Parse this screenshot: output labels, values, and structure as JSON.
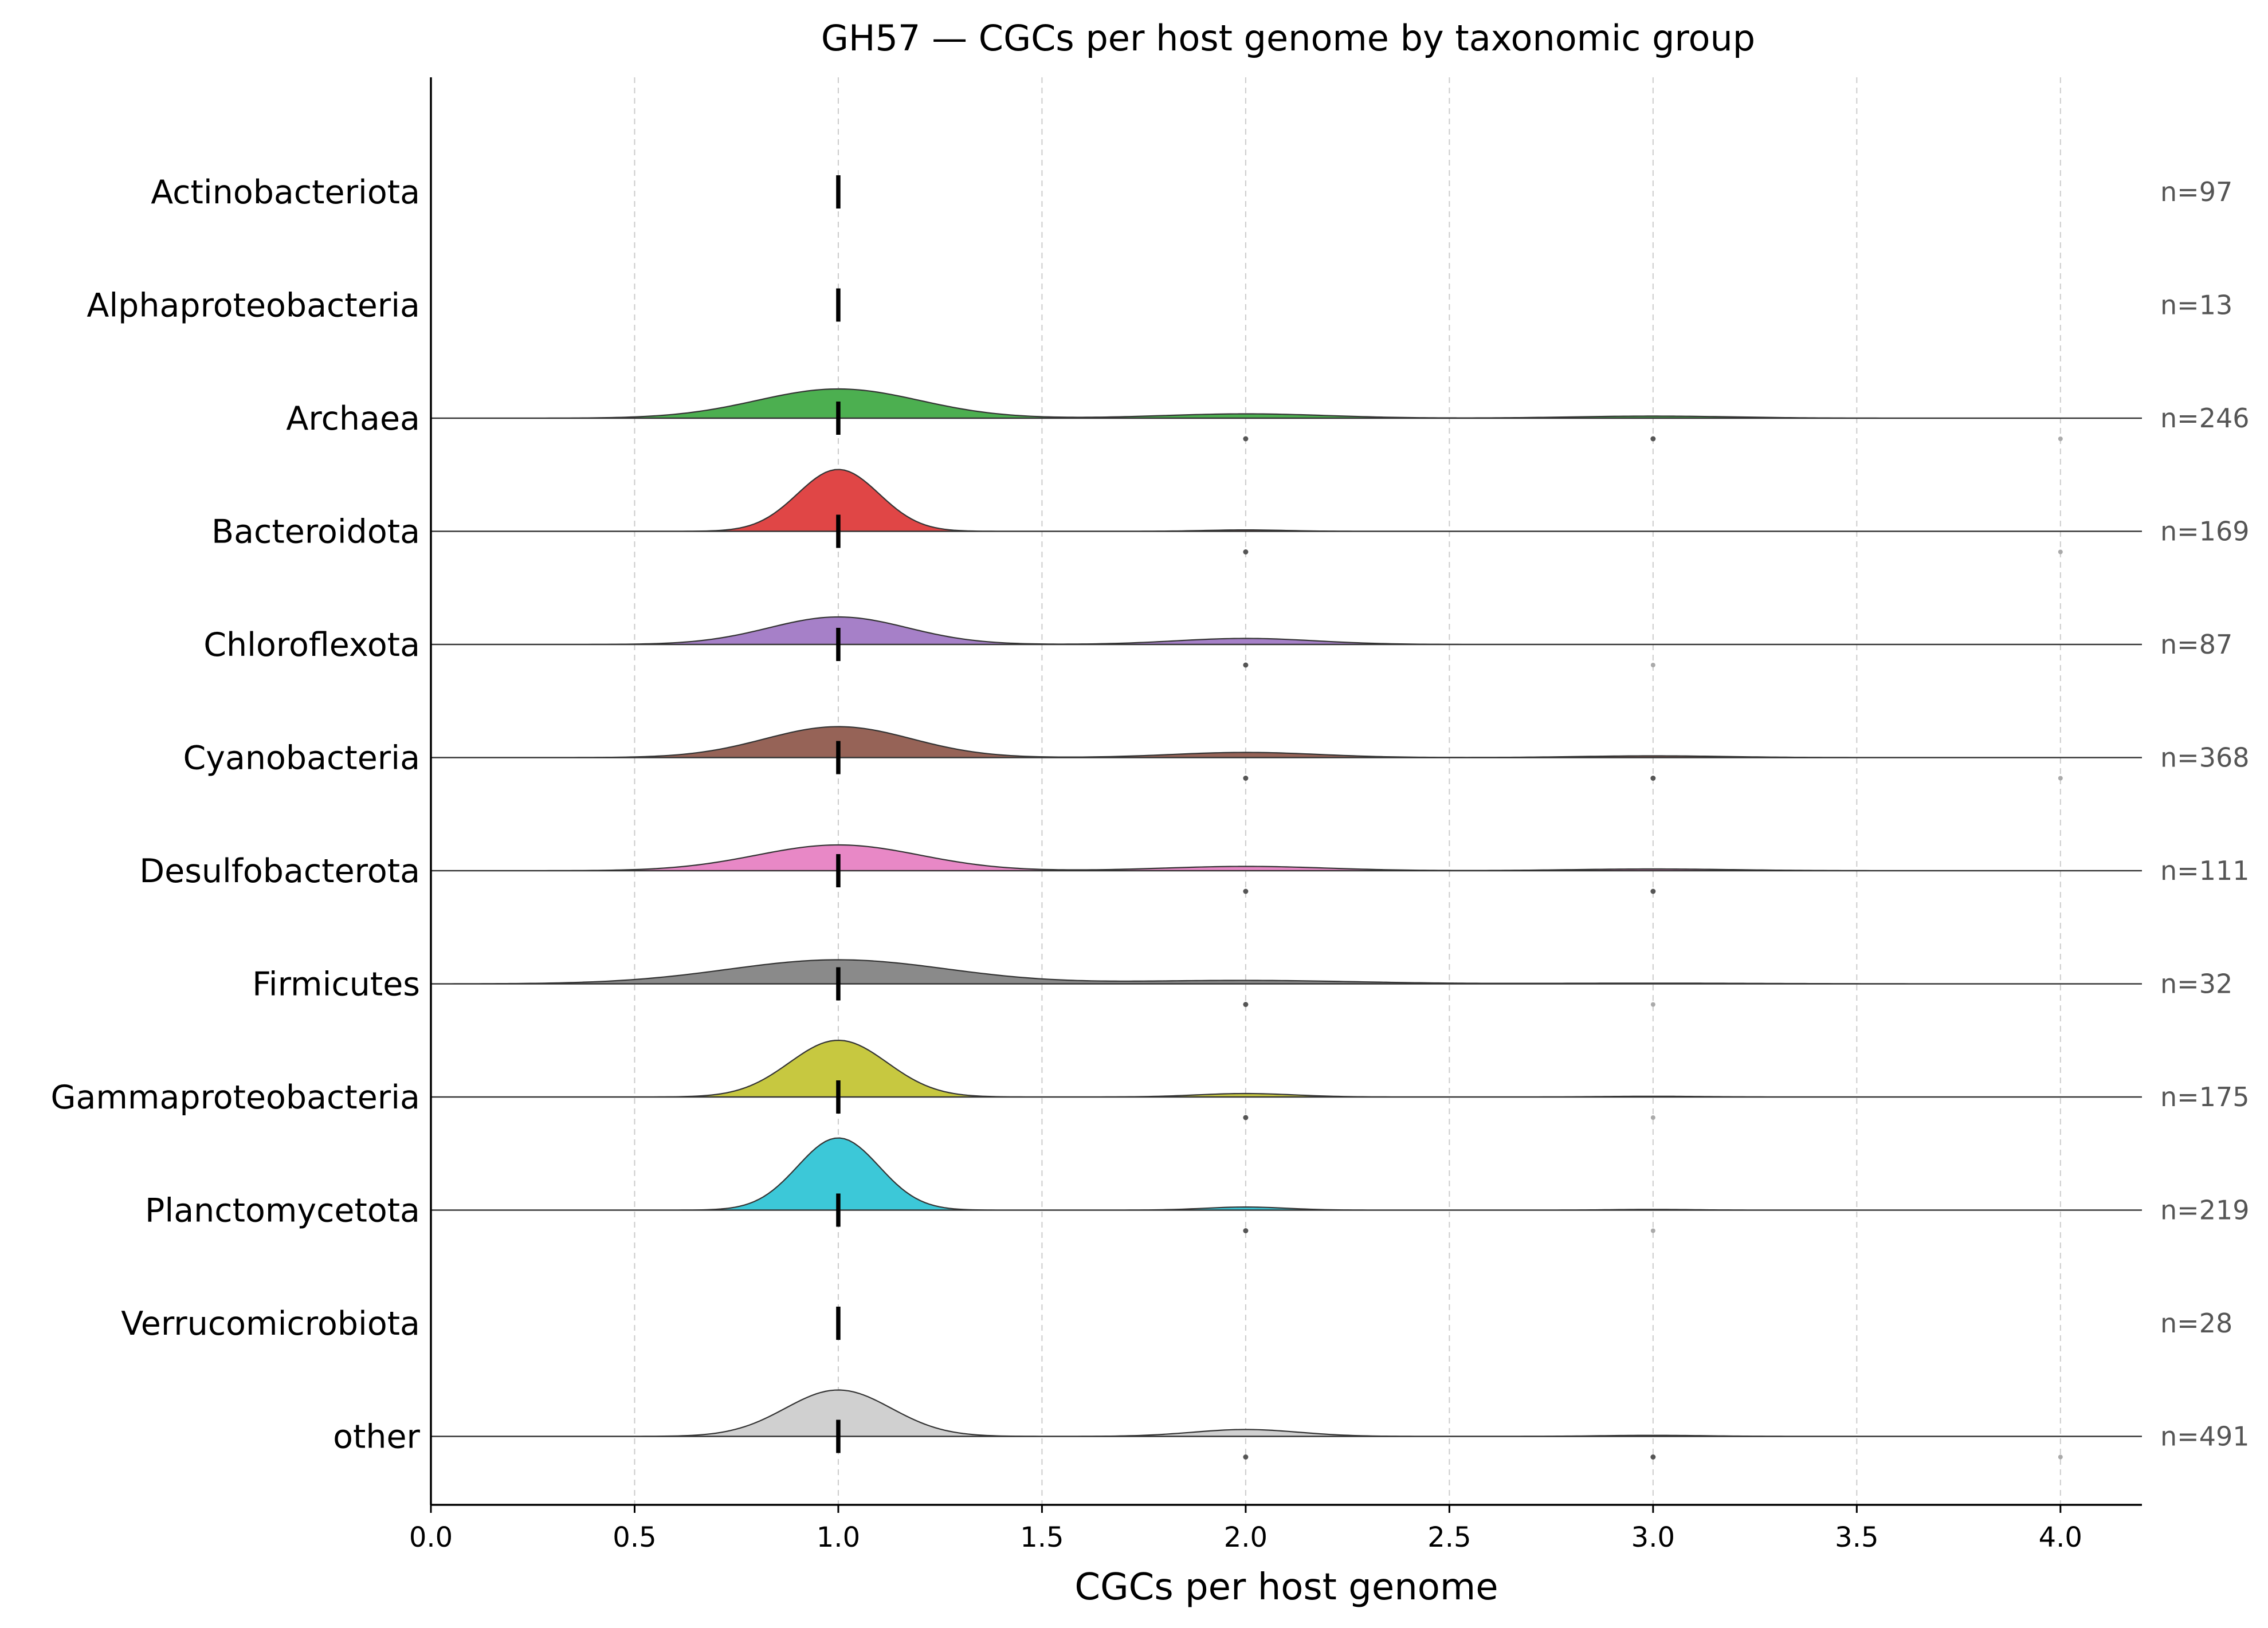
{
  "chart_data": {
    "type": "ridgeline",
    "title": "GH57 — CGCs per host genome by taxonomic group",
    "xlabel": "CGCs per host genome",
    "ylabel": "",
    "xlim": [
      0.0,
      4.2
    ],
    "xticks": [
      0.0,
      0.5,
      1.0,
      1.5,
      2.0,
      2.5,
      3.0,
      3.5,
      4.0
    ],
    "xtick_labels": [
      "0.0",
      "0.5",
      "1.0",
      "1.5",
      "2.0",
      "2.5",
      "3.0",
      "3.5",
      "4.0"
    ],
    "grid": "vertical dashed at x ticks",
    "median_marker": "short vertical black tick at the group median",
    "groups": [
      {
        "name": "Actinobacteriota",
        "n_label": "n=97",
        "color": "",
        "median": 1.0,
        "density": [],
        "outliers": []
      },
      {
        "name": "Alphaproteobacteria",
        "n_label": "n=13",
        "color": "",
        "median": 1.0,
        "density": [],
        "outliers": []
      },
      {
        "name": "Archaea",
        "n_label": "n=246",
        "color": "#4caf50",
        "median": 1.0,
        "density": [
          {
            "x": 1.0,
            "h": 0.17,
            "sd": 0.2
          },
          {
            "x": 2.0,
            "h": 0.025,
            "sd": 0.2
          },
          {
            "x": 3.0,
            "h": 0.012,
            "sd": 0.2
          }
        ],
        "outliers": [
          {
            "x": 2.0,
            "shade": "dark"
          },
          {
            "x": 3.0,
            "shade": "dark"
          },
          {
            "x": 4.0,
            "shade": "light"
          }
        ]
      },
      {
        "name": "Bacteroidota",
        "n_label": "n=169",
        "color": "#e04646",
        "median": 1.0,
        "density": [
          {
            "x": 1.0,
            "h": 0.36,
            "sd": 0.1
          },
          {
            "x": 2.0,
            "h": 0.008,
            "sd": 0.1
          }
        ],
        "outliers": [
          {
            "x": 2.0,
            "shade": "dark"
          },
          {
            "x": 4.0,
            "shade": "light"
          }
        ]
      },
      {
        "name": "Chloroflexota",
        "n_label": "n=87",
        "color": "#a680c8",
        "median": 1.0,
        "density": [
          {
            "x": 1.0,
            "h": 0.16,
            "sd": 0.17
          },
          {
            "x": 2.0,
            "h": 0.035,
            "sd": 0.17
          }
        ],
        "outliers": [
          {
            "x": 2.0,
            "shade": "dark"
          },
          {
            "x": 3.0,
            "shade": "light"
          }
        ]
      },
      {
        "name": "Cyanobacteria",
        "n_label": "n=368",
        "color": "#966357",
        "median": 1.0,
        "density": [
          {
            "x": 1.0,
            "h": 0.18,
            "sd": 0.18
          },
          {
            "x": 2.0,
            "h": 0.03,
            "sd": 0.18
          },
          {
            "x": 3.0,
            "h": 0.01,
            "sd": 0.18
          }
        ],
        "outliers": [
          {
            "x": 2.0,
            "shade": "dark"
          },
          {
            "x": 3.0,
            "shade": "dark"
          },
          {
            "x": 4.0,
            "shade": "light"
          }
        ]
      },
      {
        "name": "Desulfobacterota",
        "n_label": "n=111",
        "color": "#e888c6",
        "median": 1.0,
        "density": [
          {
            "x": 1.0,
            "h": 0.15,
            "sd": 0.2
          },
          {
            "x": 2.0,
            "h": 0.025,
            "sd": 0.2
          },
          {
            "x": 3.0,
            "h": 0.01,
            "sd": 0.2
          }
        ],
        "outliers": [
          {
            "x": 2.0,
            "shade": "dark"
          },
          {
            "x": 3.0,
            "shade": "dark"
          }
        ]
      },
      {
        "name": "Firmicutes",
        "n_label": "n=32",
        "color": "#8a8a8a",
        "median": 1.0,
        "density": [
          {
            "x": 1.0,
            "h": 0.14,
            "sd": 0.27
          },
          {
            "x": 2.0,
            "h": 0.02,
            "sd": 0.27
          },
          {
            "x": 3.0,
            "h": 0.004,
            "sd": 0.27
          }
        ],
        "outliers": [
          {
            "x": 2.0,
            "shade": "dark"
          },
          {
            "x": 3.0,
            "shade": "light"
          }
        ]
      },
      {
        "name": "Gammaproteobacteria",
        "n_label": "n=175",
        "color": "#c7c840",
        "median": 1.0,
        "density": [
          {
            "x": 1.0,
            "h": 0.33,
            "sd": 0.12
          },
          {
            "x": 2.0,
            "h": 0.02,
            "sd": 0.12
          },
          {
            "x": 3.0,
            "h": 0.004,
            "sd": 0.12
          }
        ],
        "outliers": [
          {
            "x": 2.0,
            "shade": "dark"
          },
          {
            "x": 3.0,
            "shade": "light"
          }
        ]
      },
      {
        "name": "Planctomycetota",
        "n_label": "n=219",
        "color": "#3cc8d8",
        "median": 1.0,
        "density": [
          {
            "x": 1.0,
            "h": 0.42,
            "sd": 0.1
          },
          {
            "x": 2.0,
            "h": 0.018,
            "sd": 0.1
          },
          {
            "x": 3.0,
            "h": 0.004,
            "sd": 0.1
          }
        ],
        "outliers": [
          {
            "x": 2.0,
            "shade": "dark"
          },
          {
            "x": 3.0,
            "shade": "light"
          }
        ]
      },
      {
        "name": "Verrucomicrobiota",
        "n_label": "n=28",
        "color": "",
        "median": 1.0,
        "density": [],
        "outliers": []
      },
      {
        "name": "other",
        "n_label": "n=491",
        "color": "#d0d0d0",
        "median": 1.0,
        "density": [
          {
            "x": 1.0,
            "h": 0.27,
            "sd": 0.13
          },
          {
            "x": 2.0,
            "h": 0.04,
            "sd": 0.13
          },
          {
            "x": 3.0,
            "h": 0.006,
            "sd": 0.13
          }
        ],
        "outliers": [
          {
            "x": 2.0,
            "shade": "dark"
          },
          {
            "x": 3.0,
            "shade": "dark"
          },
          {
            "x": 4.0,
            "shade": "light"
          }
        ]
      }
    ]
  }
}
